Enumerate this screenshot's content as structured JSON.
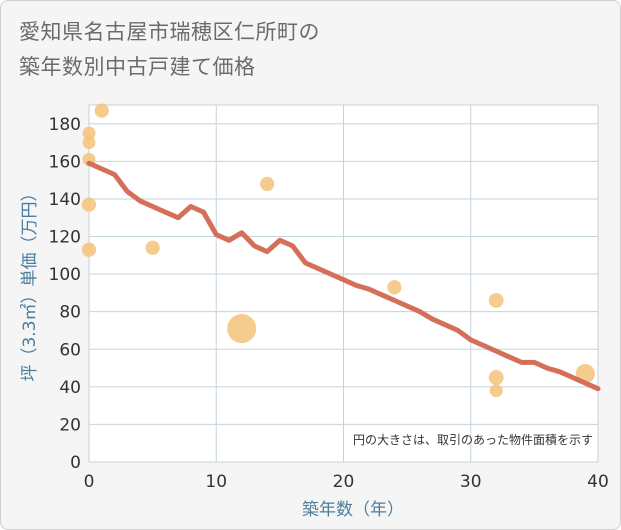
{
  "chart_data": {
    "type": "scatter",
    "title_lines": [
      "愛知県名古屋市瑞穂区仁所町の",
      "築年数別中古戸建て価格"
    ],
    "xlabel": "築年数（年）",
    "ylabel": "坪（3.3㎡）単価（万円）",
    "xlim": [
      0,
      40
    ],
    "ylim": [
      0,
      190
    ],
    "x_ticks": [
      0,
      10,
      20,
      30,
      40
    ],
    "y_ticks": [
      0,
      20,
      40,
      60,
      80,
      100,
      120,
      140,
      160,
      180
    ],
    "grid": true,
    "note": "円の大きさは、取引のあった物件面積を示す",
    "colors": {
      "points": "#f5c27a",
      "line": "#d4705a",
      "grid": "#c5d3dc",
      "axis_text": "#4a7fa0"
    },
    "points": [
      {
        "x": 0,
        "y": 175,
        "size": 1
      },
      {
        "x": 0,
        "y": 170,
        "size": 1
      },
      {
        "x": 0,
        "y": 161,
        "size": 1
      },
      {
        "x": 0,
        "y": 137,
        "size": 1.2
      },
      {
        "x": 0,
        "y": 113,
        "size": 1.2
      },
      {
        "x": 1,
        "y": 187,
        "size": 1.2
      },
      {
        "x": 5,
        "y": 114,
        "size": 1.2
      },
      {
        "x": 12,
        "y": 71,
        "size": 5
      },
      {
        "x": 14,
        "y": 148,
        "size": 1.2
      },
      {
        "x": 24,
        "y": 93,
        "size": 1.2
      },
      {
        "x": 32,
        "y": 86,
        "size": 1.3
      },
      {
        "x": 32,
        "y": 45,
        "size": 1.3
      },
      {
        "x": 32,
        "y": 38,
        "size": 1
      },
      {
        "x": 39,
        "y": 47,
        "size": 2.2
      }
    ],
    "trend_line": {
      "x": [
        0,
        1,
        2,
        3,
        4,
        5,
        6,
        7,
        8,
        9,
        10,
        11,
        12,
        13,
        14,
        15,
        16,
        17,
        18,
        19,
        20,
        21,
        22,
        23,
        24,
        25,
        26,
        27,
        28,
        29,
        30,
        31,
        32,
        33,
        34,
        35,
        36,
        37,
        38,
        39,
        40
      ],
      "y": [
        159,
        156,
        153,
        144,
        139,
        136,
        133,
        130,
        136,
        133,
        121,
        118,
        122,
        115,
        112,
        118,
        115,
        106,
        103,
        100,
        97,
        94,
        92,
        89,
        86,
        83,
        80,
        76,
        73,
        70,
        65,
        62,
        59,
        56,
        53,
        53,
        50,
        48,
        45,
        42,
        39
      ]
    }
  }
}
